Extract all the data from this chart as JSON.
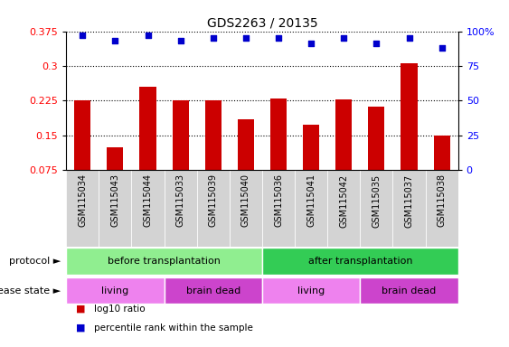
{
  "title": "GDS2263 / 20135",
  "samples": [
    "GSM115034",
    "GSM115043",
    "GSM115044",
    "GSM115033",
    "GSM115039",
    "GSM115040",
    "GSM115036",
    "GSM115041",
    "GSM115042",
    "GSM115035",
    "GSM115037",
    "GSM115038"
  ],
  "bar_values": [
    0.225,
    0.125,
    0.255,
    0.225,
    0.225,
    0.185,
    0.23,
    0.172,
    0.228,
    0.212,
    0.305,
    0.15
  ],
  "percentile_values": [
    97,
    93,
    97,
    93,
    95,
    95,
    95,
    91,
    95,
    91,
    95,
    88
  ],
  "ylim_left": [
    0.075,
    0.375
  ],
  "ylim_right": [
    0,
    100
  ],
  "yticks_left": [
    0.075,
    0.15,
    0.225,
    0.3,
    0.375
  ],
  "yticks_right": [
    0,
    25,
    50,
    75,
    100
  ],
  "bar_color": "#cc0000",
  "scatter_color": "#0000cc",
  "protocol_groups": [
    {
      "label": "before transplantation",
      "start": 0,
      "end": 6,
      "color": "#90ee90"
    },
    {
      "label": "after transplantation",
      "start": 6,
      "end": 12,
      "color": "#33cc55"
    }
  ],
  "disease_groups": [
    {
      "label": "living",
      "start": 0,
      "end": 3,
      "color": "#ee82ee"
    },
    {
      "label": "brain dead",
      "start": 3,
      "end": 6,
      "color": "#cc44cc"
    },
    {
      "label": "living",
      "start": 6,
      "end": 9,
      "color": "#ee82ee"
    },
    {
      "label": "brain dead",
      "start": 9,
      "end": 12,
      "color": "#cc44cc"
    }
  ],
  "legend_items": [
    {
      "label": "log10 ratio",
      "color": "#cc0000",
      "marker": "s"
    },
    {
      "label": "percentile rank within the sample",
      "color": "#0000cc",
      "marker": "s"
    }
  ],
  "protocol_label": "protocol",
  "disease_label": "disease state",
  "xtick_bg": "#d3d3d3"
}
